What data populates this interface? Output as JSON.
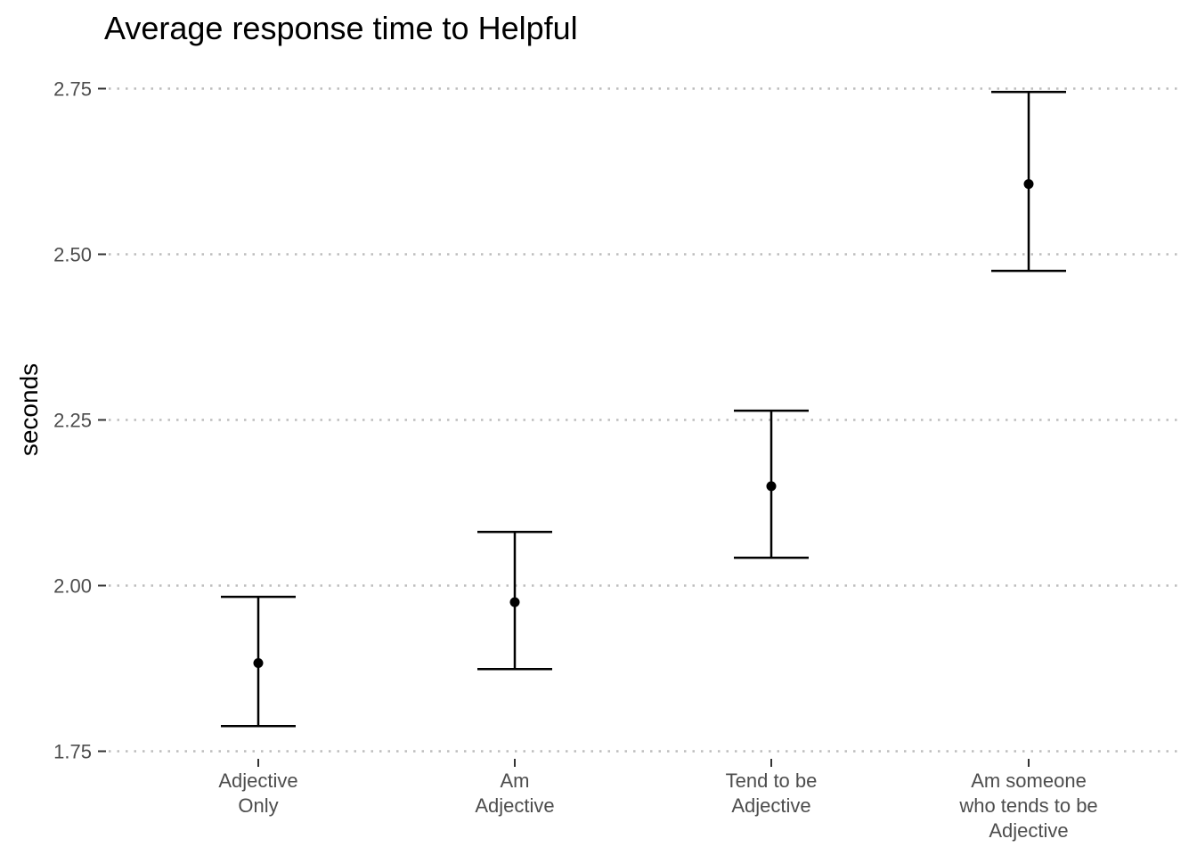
{
  "chart_data": {
    "type": "errorbar",
    "title": "Average response time to Helpful",
    "xlabel": "",
    "ylabel": "seconds",
    "ylim": [
      1.75,
      2.75
    ],
    "yticks": [
      "1.75",
      "2.00",
      "2.25",
      "2.50",
      "2.75"
    ],
    "grid": "horizontal dotted",
    "categories": [
      {
        "label": [
          "Adjective",
          "Only"
        ],
        "mean": 1.883,
        "lower": 1.788,
        "upper": 1.983
      },
      {
        "label": [
          "Am",
          "Adjective"
        ],
        "mean": 1.975,
        "lower": 1.874,
        "upper": 2.081
      },
      {
        "label": [
          "Tend to be",
          "Adjective"
        ],
        "mean": 2.15,
        "lower": 2.042,
        "upper": 2.264
      },
      {
        "label": [
          "Am someone",
          "who tends to be",
          "Adjective"
        ],
        "mean": 2.606,
        "lower": 2.475,
        "upper": 2.745
      }
    ],
    "colors": {
      "mark": "#000000",
      "grid": "#bdbdbd",
      "tick": "#4d4d4d"
    }
  }
}
